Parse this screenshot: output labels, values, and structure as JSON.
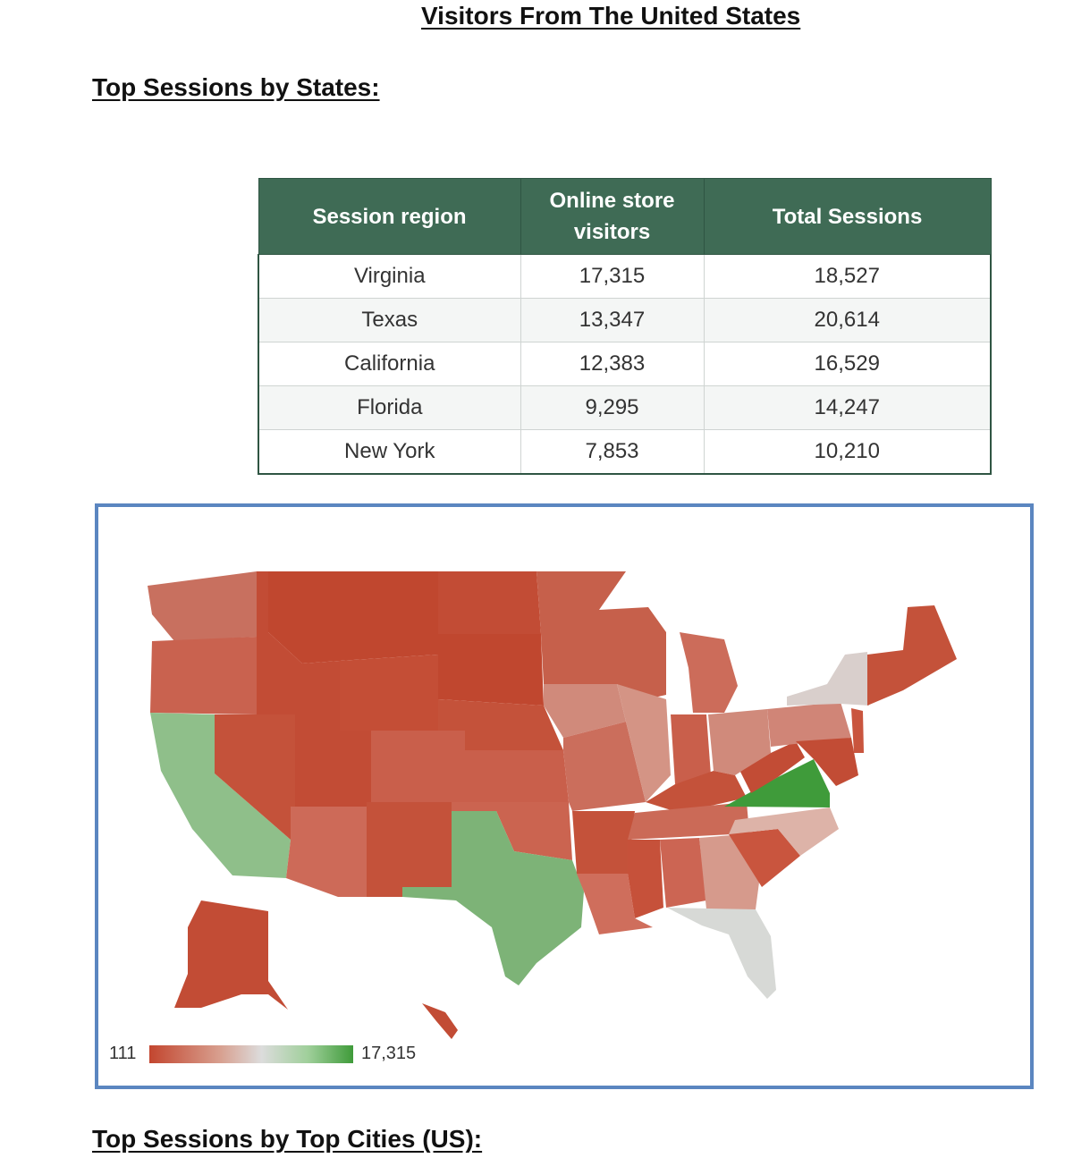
{
  "document": {
    "title": "Visitors From The United States",
    "states_heading": "Top Sessions by States:",
    "cities_heading": "Top Sessions by Top Cities (US):"
  },
  "table": {
    "headers": [
      "Session region",
      "Online store visitors",
      "Total Sessions"
    ],
    "header_visitors_line1": "Online store",
    "header_visitors_line2": "visitors",
    "rows": [
      {
        "region": "Virginia",
        "visitors": "17,315",
        "sessions": "18,527"
      },
      {
        "region": "Texas",
        "visitors": "13,347",
        "sessions": "20,614"
      },
      {
        "region": "California",
        "visitors": "12,383",
        "sessions": "16,529"
      },
      {
        "region": "Florida",
        "visitors": "9,295",
        "sessions": "14,247"
      },
      {
        "region": "New York",
        "visitors": "7,853",
        "sessions": "10,210"
      }
    ],
    "header_color": "#3f6b55"
  },
  "map": {
    "type": "choropleth",
    "legend_min": "111",
    "legend_max": "17,315",
    "color_low": "#c3462f",
    "color_mid": "#dcdcdc",
    "color_high": "#3f9b3a",
    "frame_color": "#5b86c0"
  }
}
